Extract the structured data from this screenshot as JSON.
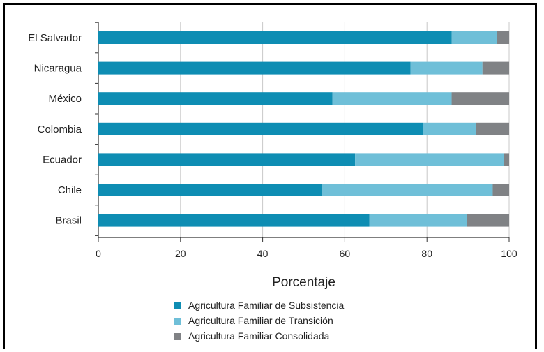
{
  "chart_data": {
    "type": "bar",
    "orientation": "horizontal",
    "stacked": true,
    "title": "",
    "xlabel": "Porcentaje",
    "ylabel": "",
    "xlim": [
      0,
      100
    ],
    "xticks": [
      0,
      20,
      40,
      60,
      80,
      100
    ],
    "grid": "vertical lines at each x tick",
    "legend_position": "bottom",
    "categories": [
      "El Salvador",
      "Nicaragua",
      "México",
      "Colombia",
      "Ecuador",
      "Chile",
      "Brasil"
    ],
    "series": [
      {
        "name": "Agricultura Familiar de Subsistencia",
        "color": "#0e8db3",
        "values": [
          86,
          76,
          57,
          79,
          62.5,
          54.5,
          66
        ]
      },
      {
        "name": "Agricultura Familiar de Transición",
        "color": "#6fbfd8",
        "values": [
          11,
          17.5,
          29,
          13,
          36.2,
          41.5,
          23.8
        ]
      },
      {
        "name": "Agricultura Familiar Consolidada",
        "color": "#808285",
        "values": [
          3,
          6.5,
          14,
          8,
          1.3,
          4,
          10.2
        ]
      }
    ]
  }
}
